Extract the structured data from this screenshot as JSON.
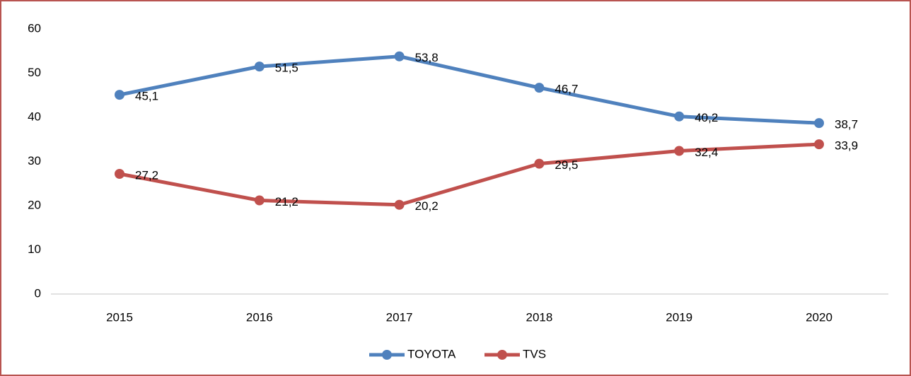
{
  "chart_data": {
    "type": "line",
    "categories": [
      "2015",
      "2016",
      "2017",
      "2018",
      "2019",
      "2020"
    ],
    "series": [
      {
        "name": "TOYOTA",
        "color": "#4f81bd",
        "values": [
          45.1,
          51.5,
          53.8,
          46.7,
          40.2,
          38.7
        ],
        "value_labels": [
          "45,1",
          "51,5",
          "53,8",
          "46,7",
          "40,2",
          "38,7"
        ]
      },
      {
        "name": "TVS",
        "color": "#c0504d",
        "values": [
          27.2,
          21.2,
          20.2,
          29.5,
          32.4,
          33.9
        ],
        "value_labels": [
          "27,2",
          "21,2",
          "20,2",
          "29,5",
          "32,4",
          "33,9"
        ]
      }
    ],
    "ylim": [
      0,
      60
    ],
    "yticks": [
      0,
      10,
      20,
      30,
      40,
      50,
      60
    ],
    "grid": false,
    "legend": "bottom"
  }
}
